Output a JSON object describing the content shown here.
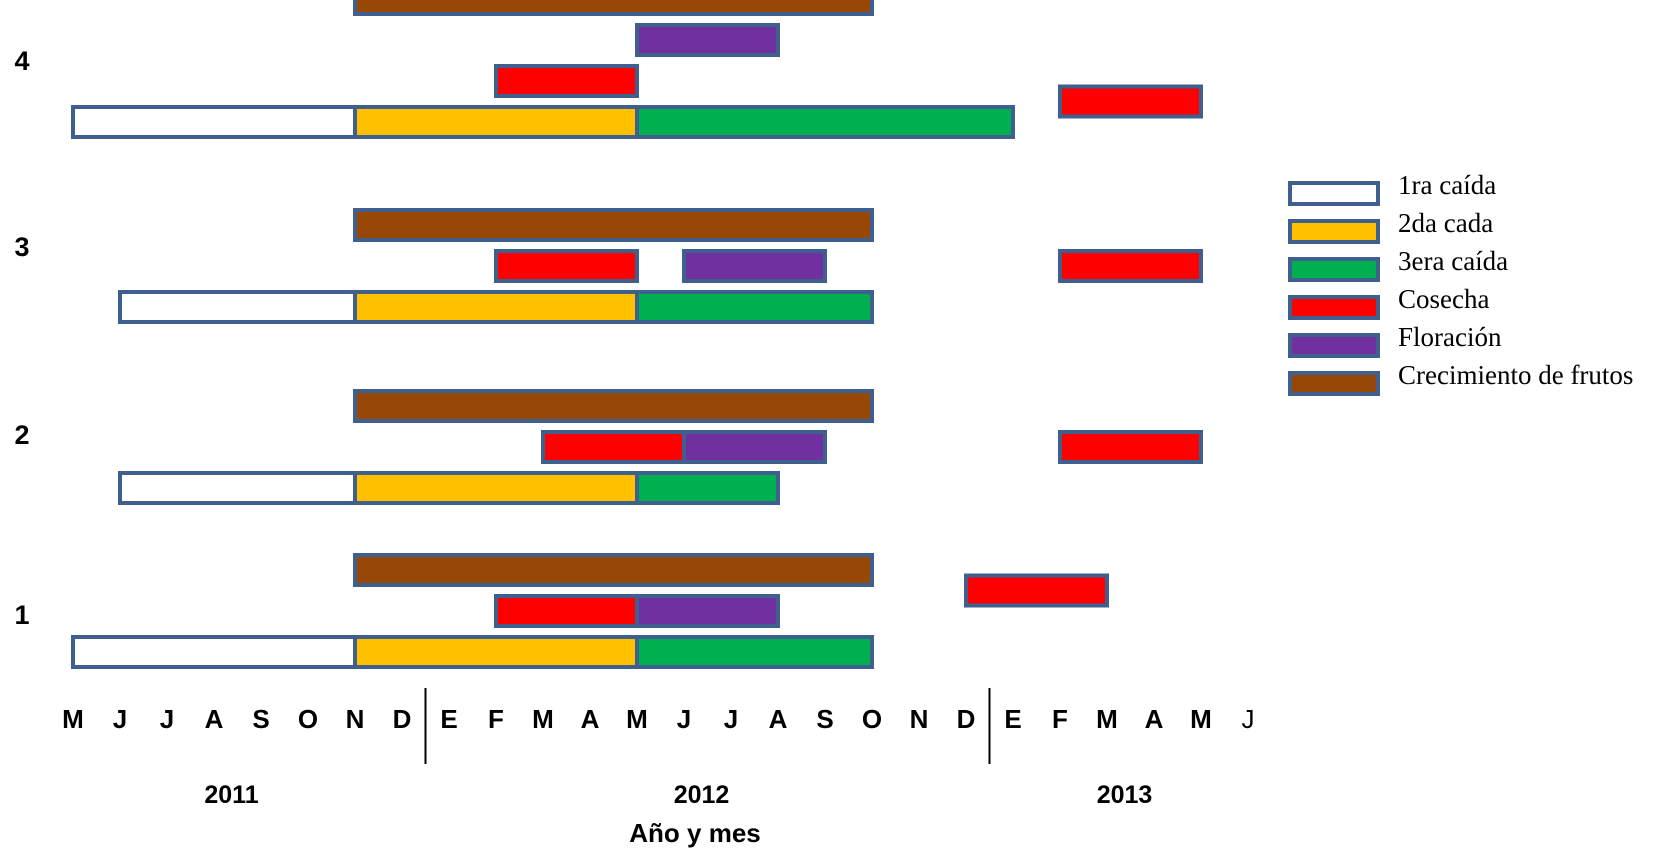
{
  "chart_data": {
    "type": "gantt",
    "xlabel": "Año y mes",
    "month_ticks": [
      "M",
      "J",
      "J",
      "A",
      "S",
      "O",
      "N",
      "D",
      "E",
      "F",
      "M",
      "A",
      "M",
      "J",
      "J",
      "A",
      "S",
      "O",
      "N",
      "D",
      "E",
      "F",
      "M",
      "A",
      "M",
      "J"
    ],
    "years": [
      {
        "label": "2011",
        "center_month": 3.5
      },
      {
        "label": "2012",
        "center_month": 13.5
      },
      {
        "label": "2013",
        "center_month": 22.5
      }
    ],
    "year_dividers": [
      7.5,
      19.5
    ],
    "rows": [
      "1",
      "2",
      "3",
      "4"
    ],
    "stroke_color": "#3F5F8F",
    "legend": [
      {
        "key": "primera",
        "label": "1ra caída",
        "color": "#FFFFFF"
      },
      {
        "key": "segunda",
        "label": "2da cada",
        "color": "#FFC000"
      },
      {
        "key": "tercera",
        "label": "3era caída",
        "color": "#00B050"
      },
      {
        "key": "cosecha",
        "label": "Cosecha",
        "color": "#FF0000"
      },
      {
        "key": "floracion",
        "label": "Floración",
        "color": "#7030A0"
      },
      {
        "key": "crecimiento",
        "label": "Crecimiento de frutos",
        "color": "#974706"
      }
    ],
    "bars": [
      {
        "row": "1",
        "level": 0,
        "cat": "primera",
        "start": "2011-05",
        "end": "2011-11"
      },
      {
        "row": "1",
        "level": 0,
        "cat": "segunda",
        "start": "2011-11",
        "end": "2012-05"
      },
      {
        "row": "1",
        "level": 0,
        "cat": "tercera",
        "start": "2012-05",
        "end": "2012-10"
      },
      {
        "row": "1",
        "level": 1,
        "cat": "cosecha",
        "start": "2012-02",
        "end": "2012-05"
      },
      {
        "row": "1",
        "level": 1,
        "cat": "floracion",
        "start": "2012-05",
        "end": "2012-08"
      },
      {
        "row": "1",
        "level": 2,
        "cat": "crecimiento",
        "start": "2011-11",
        "end": "2012-10"
      },
      {
        "row": "1",
        "level": 1.5,
        "cat": "cosecha",
        "start": "2012-12",
        "end": "2013-03"
      },
      {
        "row": "2",
        "level": 0,
        "cat": "primera",
        "start": "2011-06",
        "end": "2011-11"
      },
      {
        "row": "2",
        "level": 0,
        "cat": "segunda",
        "start": "2011-11",
        "end": "2012-05"
      },
      {
        "row": "2",
        "level": 0,
        "cat": "tercera",
        "start": "2012-05",
        "end": "2012-08"
      },
      {
        "row": "2",
        "level": 1,
        "cat": "cosecha",
        "start": "2012-03",
        "end": "2012-06"
      },
      {
        "row": "2",
        "level": 1,
        "cat": "floracion",
        "start": "2012-06",
        "end": "2012-09"
      },
      {
        "row": "2",
        "level": 2,
        "cat": "crecimiento",
        "start": "2011-11",
        "end": "2012-10"
      },
      {
        "row": "2",
        "level": 1,
        "cat": "cosecha",
        "start": "2013-02",
        "end": "2013-05"
      },
      {
        "row": "3",
        "level": 0,
        "cat": "primera",
        "start": "2011-06",
        "end": "2011-11"
      },
      {
        "row": "3",
        "level": 0,
        "cat": "segunda",
        "start": "2011-11",
        "end": "2012-05"
      },
      {
        "row": "3",
        "level": 0,
        "cat": "tercera",
        "start": "2012-05",
        "end": "2012-10"
      },
      {
        "row": "3",
        "level": 1,
        "cat": "cosecha",
        "start": "2012-02",
        "end": "2012-05"
      },
      {
        "row": "3",
        "level": 1,
        "cat": "floracion",
        "start": "2012-06",
        "end": "2012-09"
      },
      {
        "row": "3",
        "level": 2,
        "cat": "crecimiento",
        "start": "2011-11",
        "end": "2012-10"
      },
      {
        "row": "3",
        "level": 1,
        "cat": "cosecha",
        "start": "2013-02",
        "end": "2013-05"
      },
      {
        "row": "4",
        "level": 0,
        "cat": "primera",
        "start": "2011-05",
        "end": "2011-11"
      },
      {
        "row": "4",
        "level": 0,
        "cat": "segunda",
        "start": "2011-11",
        "end": "2012-05"
      },
      {
        "row": "4",
        "level": 0,
        "cat": "tercera",
        "start": "2012-05",
        "end": "2013-01"
      },
      {
        "row": "4",
        "level": 1,
        "cat": "cosecha",
        "start": "2012-02",
        "end": "2012-05"
      },
      {
        "row": "4",
        "level": 2,
        "cat": "floracion",
        "start": "2012-05",
        "end": "2012-08"
      },
      {
        "row": "4",
        "level": 3,
        "cat": "crecimiento",
        "start": "2011-11",
        "end": "2012-10"
      },
      {
        "row": "4",
        "level": 0.5,
        "cat": "cosecha",
        "start": "2013-02",
        "end": "2013-05"
      }
    ]
  }
}
